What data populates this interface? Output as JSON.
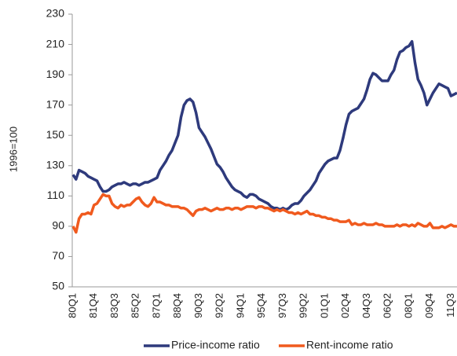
{
  "chart_data": {
    "type": "line",
    "y_label": "1996=100",
    "ylim": [
      50,
      230
    ],
    "yticks": [
      50,
      70,
      90,
      110,
      130,
      150,
      170,
      190,
      210,
      230
    ],
    "categories": [
      "80Q1",
      null,
      null,
      null,
      null,
      null,
      null,
      "81Q4",
      null,
      null,
      null,
      null,
      null,
      null,
      "83Q3",
      null,
      null,
      null,
      null,
      null,
      null,
      "85Q2",
      null,
      null,
      null,
      null,
      null,
      null,
      "87Q1",
      null,
      null,
      null,
      null,
      null,
      null,
      "88Q4",
      null,
      null,
      null,
      null,
      null,
      null,
      "90Q3",
      null,
      null,
      null,
      null,
      null,
      null,
      "92Q2",
      null,
      null,
      null,
      null,
      null,
      null,
      "94Q1",
      null,
      null,
      null,
      null,
      null,
      null,
      "95Q4",
      null,
      null,
      null,
      null,
      null,
      null,
      "97Q3",
      null,
      null,
      null,
      null,
      null,
      null,
      "99Q2",
      null,
      null,
      null,
      null,
      null,
      null,
      "01Q1",
      null,
      null,
      null,
      null,
      null,
      null,
      "02Q4",
      null,
      null,
      null,
      null,
      null,
      null,
      "04Q3",
      null,
      null,
      null,
      null,
      null,
      null,
      "06Q2",
      null,
      null,
      null,
      null,
      null,
      null,
      "08Q1",
      null,
      null,
      null,
      null,
      null,
      null,
      "09Q4",
      null,
      null,
      null,
      null,
      null,
      null,
      "11Q3",
      null,
      null
    ],
    "series": [
      {
        "name": "Price-income ratio",
        "color": "#2e3a7c",
        "values": [
          124,
          121,
          127,
          126,
          125,
          123,
          122,
          121,
          120,
          116,
          113,
          113,
          114,
          116,
          117,
          118,
          118,
          119,
          118,
          117,
          118,
          118,
          117,
          118,
          119,
          119,
          120,
          121,
          122,
          127,
          130,
          133,
          137,
          140,
          145,
          150,
          162,
          170,
          173,
          174,
          172,
          165,
          155,
          152,
          149,
          145,
          141,
          136,
          131,
          129,
          126,
          122,
          119,
          116,
          114,
          113,
          112,
          110,
          109,
          111,
          111,
          110,
          108,
          107,
          106,
          105,
          103,
          102,
          102,
          101,
          102,
          101,
          102,
          104,
          105,
          105,
          107,
          110,
          112,
          114,
          117,
          120,
          125,
          128,
          131,
          133,
          134,
          135,
          135,
          140,
          148,
          157,
          164,
          166,
          167,
          168,
          171,
          174,
          180,
          187,
          191,
          190,
          188,
          186,
          186,
          186,
          190,
          193,
          200,
          205,
          206,
          208,
          209,
          212,
          198,
          187,
          183,
          178,
          170,
          174,
          178,
          181,
          184,
          183,
          182,
          181,
          176,
          177,
          178
        ]
      },
      {
        "name": "Rent-income ratio",
        "color": "#f05a1e",
        "values": [
          90,
          86,
          95,
          98,
          98,
          99,
          98,
          104,
          105,
          108,
          111,
          110,
          110,
          105,
          103,
          102,
          104,
          103,
          104,
          104,
          106,
          108,
          109,
          106,
          104,
          103,
          105,
          109,
          106,
          106,
          105,
          104,
          104,
          103,
          103,
          103,
          102,
          102,
          101,
          99,
          97,
          100,
          101,
          101,
          102,
          101,
          100,
          101,
          102,
          101,
          101,
          102,
          102,
          101,
          102,
          102,
          101,
          102,
          103,
          103,
          103,
          102,
          103,
          103,
          102,
          102,
          101,
          100,
          101,
          100,
          101,
          100,
          99,
          99,
          98,
          99,
          98,
          99,
          100,
          98,
          98,
          97,
          97,
          96,
          96,
          95,
          95,
          94,
          94,
          93,
          93,
          93,
          94,
          91,
          92,
          91,
          91,
          92,
          91,
          91,
          91,
          92,
          91,
          91,
          90,
          90,
          90,
          90,
          91,
          90,
          91,
          91,
          90,
          91,
          90,
          92,
          91,
          90,
          90,
          92,
          89,
          89,
          89,
          90,
          89,
          90,
          91,
          90,
          90
        ]
      }
    ]
  }
}
